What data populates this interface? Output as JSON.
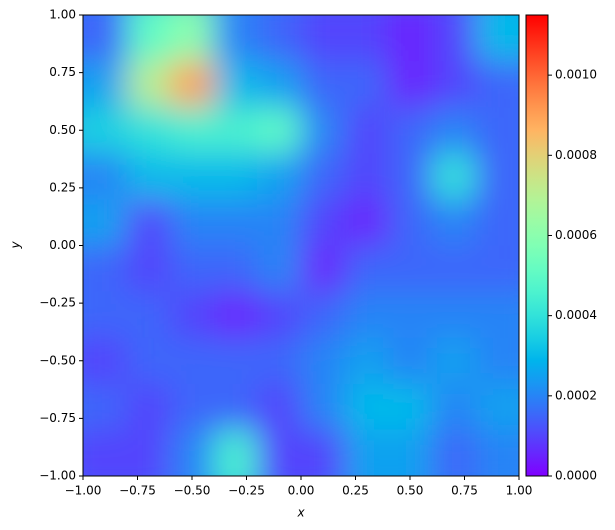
{
  "chart_data": {
    "type": "heatmap",
    "xlabel": "x",
    "ylabel": "y",
    "colormap": "rainbow",
    "origin": "upper",
    "xlim": [
      -1,
      1
    ],
    "ylim": [
      -1,
      1
    ],
    "clim": [
      0,
      0.00115
    ],
    "xticks": [
      {
        "value": -1,
        "label": "−1.00"
      },
      {
        "value": -0.75,
        "label": "−0.75"
      },
      {
        "value": -0.5,
        "label": "−0.50"
      },
      {
        "value": -0.25,
        "label": "−0.25"
      },
      {
        "value": 0,
        "label": "0.00"
      },
      {
        "value": 0.25,
        "label": "0.25"
      },
      {
        "value": 0.5,
        "label": "0.50"
      },
      {
        "value": 0.75,
        "label": "0.75"
      },
      {
        "value": 1,
        "label": "1.00"
      }
    ],
    "yticks": [
      {
        "value": -1,
        "label": "−1.00"
      },
      {
        "value": -0.75,
        "label": "−0.75"
      },
      {
        "value": -0.5,
        "label": "−0.50"
      },
      {
        "value": -0.25,
        "label": "−0.25"
      },
      {
        "value": 0,
        "label": "0.00"
      },
      {
        "value": 0.25,
        "label": "0.25"
      },
      {
        "value": 0.5,
        "label": "0.50"
      },
      {
        "value": 0.75,
        "label": "0.75"
      },
      {
        "value": 1,
        "label": "1.00"
      }
    ],
    "cticks": [
      {
        "value": 0,
        "label": "0.0000"
      },
      {
        "value": 0.0002,
        "label": "0.0002"
      },
      {
        "value": 0.0004,
        "label": "0.0004"
      },
      {
        "value": 0.0006,
        "label": "0.0006"
      },
      {
        "value": 0.0008,
        "label": "0.0008"
      },
      {
        "value": 0.001,
        "label": "0.0010"
      }
    ],
    "z": [
      [
        0.00015,
        0.0005,
        0.0006,
        0.0002,
        0.00015,
        0.0001,
        0.0001,
        5e-05,
        0.0001,
        0.0003
      ],
      [
        0.00025,
        0.0007,
        0.0009,
        0.0003,
        0.00025,
        0.00015,
        0.00015,
        5e-05,
        0.0001,
        0.00015
      ],
      [
        0.00035,
        0.0004,
        0.00045,
        0.00045,
        0.0005,
        0.0002,
        0.0001,
        0.00015,
        0.0002,
        0.00015
      ],
      [
        0.0002,
        0.0003,
        0.0003,
        0.0003,
        0.00025,
        0.00015,
        0.0001,
        0.00015,
        0.0004,
        0.00015
      ],
      [
        0.00025,
        0.0001,
        0.0002,
        0.0002,
        0.0002,
        0.0001,
        5e-05,
        0.00015,
        0.0002,
        0.00015
      ],
      [
        0.00015,
        0.0001,
        0.00015,
        0.00015,
        0.0002,
        5e-05,
        0.00015,
        0.00015,
        0.00015,
        0.00015
      ],
      [
        0.00015,
        0.00015,
        0.0001,
        5e-05,
        0.0001,
        0.00015,
        0.0002,
        0.0002,
        0.0002,
        0.0002
      ],
      [
        0.0001,
        0.00015,
        0.00015,
        0.00015,
        0.00015,
        0.0002,
        0.00025,
        0.0002,
        0.00025,
        0.0002
      ],
      [
        0.00015,
        0.0001,
        0.00015,
        0.00015,
        0.0001,
        0.0002,
        0.0003,
        0.0003,
        0.0002,
        0.00025
      ],
      [
        0.0001,
        0.0001,
        0.0002,
        0.00045,
        0.0001,
        0.0001,
        0.00025,
        0.00025,
        0.00015,
        0.0002
      ]
    ]
  }
}
